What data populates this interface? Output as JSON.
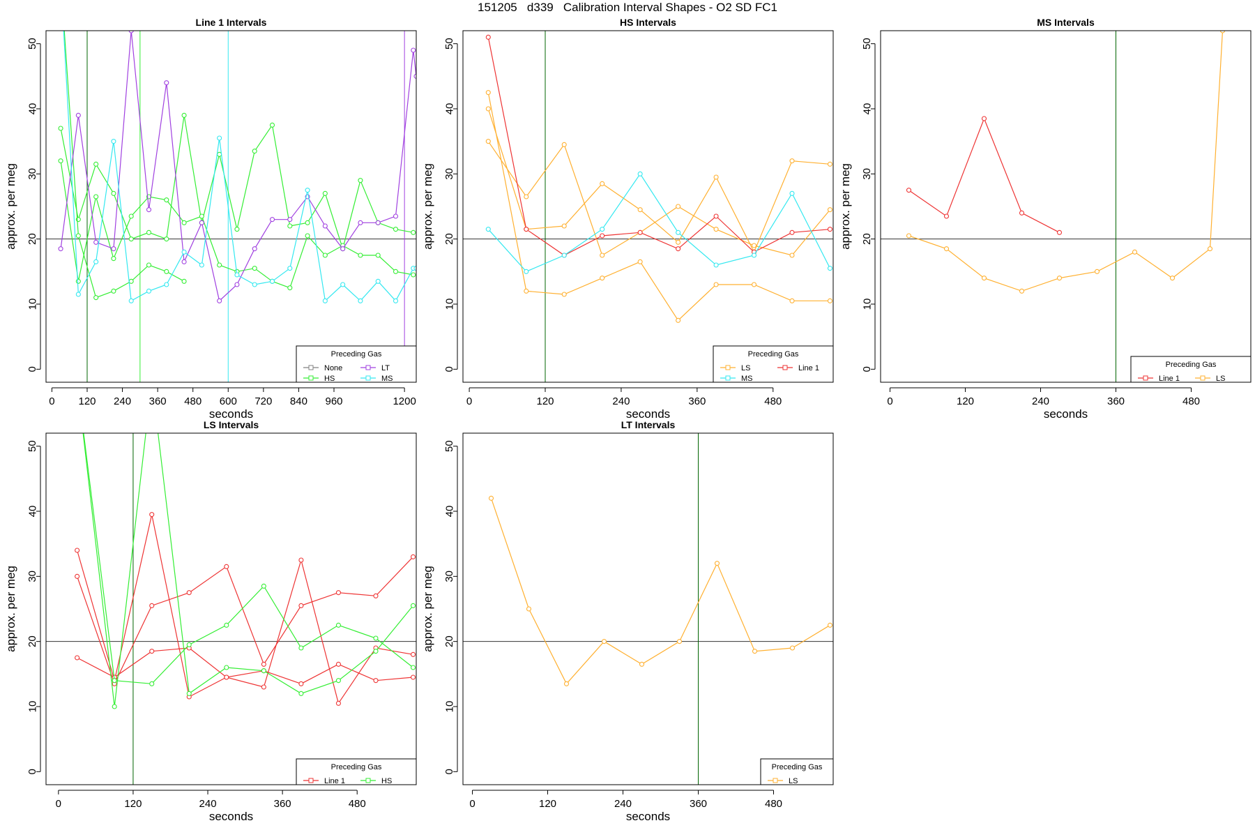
{
  "page_title": "151205   d339   Calibration Interval Shapes - O2 SD FC1",
  "colors": {
    "None": "#808080",
    "HS": "#33ee33",
    "LT": "#a040e0",
    "MS": "#33e8f0",
    "LS": "#ffb030",
    "Line 1": "#ee3333",
    "vline": "#006400",
    "refline": "#333333"
  },
  "chart_data": [
    {
      "type": "line",
      "title": "Line 1 Intervals",
      "xlabel": "seconds",
      "ylabel": "approx. per meg",
      "xlim": [
        -20,
        1240
      ],
      "ylim": [
        -2,
        52
      ],
      "x_ticks": [
        0,
        120,
        240,
        360,
        480,
        600,
        720,
        840,
        960,
        1200
      ],
      "y_ticks": [
        0,
        10,
        20,
        30,
        40,
        50
      ],
      "hline": 20,
      "vlines": [
        {
          "x": 120,
          "color": "#006400"
        },
        {
          "x": 300,
          "color": "#33ee33"
        },
        {
          "x": 600,
          "color": "#33e8f0"
        },
        {
          "x": 1200,
          "color": "#a040e0"
        }
      ],
      "legend": {
        "title": "Preceding Gas",
        "position": "bottom-right",
        "columns": 2,
        "entries": [
          "None",
          "LT",
          "HS",
          "MS"
        ]
      },
      "series": [
        {
          "name": "HS",
          "x": [
            30,
            90,
            150,
            210,
            270,
            330,
            390,
            450,
            510,
            570,
            630,
            690,
            750,
            810,
            870,
            930,
            990,
            1050,
            1110,
            1170,
            1230
          ],
          "y": [
            37,
            23,
            31.5,
            27,
            20,
            21,
            20,
            39,
            22.5,
            33,
            21.5,
            33.5,
            37.5,
            22,
            22.5,
            27,
            18.5,
            29,
            22.5,
            21.5,
            21
          ]
        },
        {
          "name": "HS",
          "x": [
            30,
            90,
            150,
            210,
            270,
            330,
            390,
            450,
            510,
            570,
            630,
            690,
            750,
            810,
            870,
            930,
            990,
            1050,
            1110,
            1170,
            1230
          ],
          "y": [
            32,
            13.5,
            26.5,
            17,
            23.5,
            26.5,
            26,
            22.5,
            23.5,
            16,
            15,
            15.5,
            13.5,
            12.5,
            20.5,
            17.5,
            19,
            17.5,
            17.5,
            15,
            14.5
          ]
        },
        {
          "name": "HS",
          "x": [
            30,
            90,
            150,
            210,
            270,
            330,
            390,
            450
          ],
          "y": [
            60,
            20.5,
            11,
            12,
            13.5,
            16,
            15,
            13.5
          ]
        },
        {
          "name": "LT",
          "x": [
            30,
            90,
            150,
            210,
            270,
            330,
            390,
            450,
            510,
            570,
            630,
            690,
            750,
            810,
            870,
            930,
            990,
            1050,
            1110,
            1170,
            1230,
            1240
          ],
          "y": [
            18.5,
            39,
            19.5,
            18.5,
            52,
            24.5,
            44,
            16.5,
            22.5,
            10.5,
            13,
            18.5,
            23,
            23,
            26.5,
            22,
            18.5,
            22.5,
            22.5,
            23.5,
            49,
            45
          ]
        },
        {
          "name": "MS",
          "x": [
            30,
            90,
            150,
            210,
            270,
            330,
            390,
            450,
            510,
            570,
            630,
            690,
            750,
            810,
            870,
            930,
            990,
            1050,
            1110,
            1170,
            1230,
            1240
          ],
          "y": [
            60,
            11.5,
            16.5,
            35,
            10.5,
            12,
            13,
            18,
            16,
            35.5,
            14.5,
            13,
            13.5,
            15.5,
            27.5,
            10.5,
            13,
            10.5,
            13.5,
            10.5,
            15.5,
            15.5
          ]
        }
      ]
    },
    {
      "type": "line",
      "title": "HS Intervals",
      "xlabel": "seconds",
      "ylabel": "approx. per meg",
      "xlim": [
        -10,
        575
      ],
      "ylim": [
        -2,
        52
      ],
      "x_ticks": [
        0,
        120,
        240,
        360,
        480
      ],
      "y_ticks": [
        0,
        10,
        20,
        30,
        40,
        50
      ],
      "hline": 20,
      "vlines": [
        {
          "x": 120,
          "color": "#006400"
        }
      ],
      "legend": {
        "title": "Preceding Gas",
        "position": "bottom-right",
        "columns": 2,
        "entries": [
          "LS",
          "Line 1",
          "MS"
        ]
      },
      "series": [
        {
          "name": "LS",
          "x": [
            30,
            90,
            150,
            210,
            270,
            330,
            390,
            450,
            510,
            570
          ],
          "y": [
            42.5,
            12,
            11.5,
            14,
            16.5,
            7.5,
            13,
            13,
            10.5,
            10.5
          ]
        },
        {
          "name": "LS",
          "x": [
            30,
            90,
            150,
            210,
            270,
            330,
            390,
            450,
            510,
            570
          ],
          "y": [
            40,
            21.5,
            22,
            28.5,
            24.5,
            19.5,
            29.5,
            18,
            32,
            31.5
          ]
        },
        {
          "name": "LS",
          "x": [
            30,
            90,
            150,
            210,
            270,
            330,
            390,
            450,
            510,
            570
          ],
          "y": [
            35,
            26.5,
            34.5,
            17.5,
            21,
            25,
            21.5,
            19,
            17.5,
            24.5
          ]
        },
        {
          "name": "Line 1",
          "x": [
            30,
            90,
            150,
            210,
            270,
            330,
            390,
            450,
            510,
            570
          ],
          "y": [
            51,
            21.5,
            17.5,
            20.5,
            21,
            18.5,
            23.5,
            18,
            21,
            21.5
          ]
        },
        {
          "name": "MS",
          "x": [
            30,
            90,
            150,
            210,
            270,
            330,
            390,
            450,
            510,
            570
          ],
          "y": [
            21.5,
            15,
            17.5,
            21.5,
            30,
            21,
            16,
            17.5,
            27,
            15.5
          ]
        }
      ]
    },
    {
      "type": "line",
      "title": "MS Intervals",
      "xlabel": "seconds",
      "ylabel": "approx. per meg",
      "xlim": [
        -15,
        575
      ],
      "ylim": [
        -2,
        52
      ],
      "x_ticks": [
        0,
        120,
        240,
        360,
        480
      ],
      "y_ticks": [
        0,
        10,
        20,
        30,
        40,
        50
      ],
      "hline": 20,
      "vlines": [
        {
          "x": 360,
          "color": "#006400"
        }
      ],
      "legend": {
        "title": "Preceding Gas",
        "position": "bottom-right",
        "columns": 2,
        "entries": [
          "Line 1",
          "LS"
        ]
      },
      "series": [
        {
          "name": "Line 1",
          "x": [
            30,
            90,
            150,
            210,
            270
          ],
          "y": [
            27.5,
            23.5,
            38.5,
            24,
            21
          ]
        },
        {
          "name": "LS",
          "x": [
            30,
            90,
            150,
            210,
            270,
            330,
            390,
            450,
            510,
            530
          ],
          "y": [
            20.5,
            18.5,
            14,
            12,
            14,
            15,
            18,
            14,
            18.5,
            52
          ]
        }
      ]
    },
    {
      "type": "line",
      "title": "LS Intervals",
      "xlabel": "seconds",
      "ylabel": "approx. per meg",
      "xlim": [
        -20,
        575
      ],
      "ylim": [
        -2,
        52
      ],
      "x_ticks": [
        0,
        120,
        240,
        360,
        480
      ],
      "y_ticks": [
        0,
        10,
        20,
        30,
        40,
        50
      ],
      "hline": 20,
      "vlines": [
        {
          "x": 120,
          "color": "#006400"
        }
      ],
      "legend": {
        "title": "Preceding Gas",
        "position": "bottom-right",
        "columns": 2,
        "entries": [
          "Line 1",
          "HS"
        ]
      },
      "series": [
        {
          "name": "Line 1",
          "x": [
            30,
            90,
            150,
            210,
            270,
            330,
            390,
            450,
            510,
            570
          ],
          "y": [
            34,
            14,
            39.5,
            11.5,
            14.5,
            13,
            32.5,
            10.5,
            19,
            18
          ]
        },
        {
          "name": "Line 1",
          "x": [
            30,
            90,
            150,
            210,
            270,
            330,
            390,
            450,
            510,
            570
          ],
          "y": [
            30,
            13.5,
            25.5,
            27.5,
            31.5,
            16.5,
            25.5,
            27.5,
            27,
            33
          ]
        },
        {
          "name": "Line 1",
          "x": [
            30,
            90,
            150,
            210,
            270,
            330,
            390,
            450,
            510,
            570
          ],
          "y": [
            17.5,
            14.5,
            18.5,
            19,
            14.5,
            15.5,
            13.5,
            16.5,
            14,
            14.5
          ]
        },
        {
          "name": "HS",
          "x": [
            30,
            90,
            150,
            210,
            270,
            330,
            390,
            450,
            510,
            570
          ],
          "y": [
            60,
            10,
            60,
            12,
            16,
            15.5,
            12,
            14,
            18.5,
            25.5
          ]
        },
        {
          "name": "HS",
          "x": [
            30,
            90,
            150,
            210,
            270,
            330,
            390,
            450,
            510,
            570
          ],
          "y": [
            60,
            14,
            13.5,
            19.5,
            22.5,
            28.5,
            19,
            22.5,
            20.5,
            16
          ]
        }
      ]
    },
    {
      "type": "line",
      "title": "LT Intervals",
      "xlabel": "seconds",
      "ylabel": "approx. per meg",
      "xlim": [
        -15,
        575
      ],
      "ylim": [
        -2,
        52
      ],
      "x_ticks": [
        0,
        120,
        240,
        360,
        480
      ],
      "y_ticks": [
        0,
        10,
        20,
        30,
        40,
        50
      ],
      "hline": 20,
      "vlines": [
        {
          "x": 360,
          "color": "#006400"
        }
      ],
      "legend": {
        "title": "Preceding Gas",
        "position": "bottom-right",
        "columns": 1,
        "entries": [
          "LS"
        ]
      },
      "series": [
        {
          "name": "LS",
          "x": [
            30,
            90,
            150,
            210,
            270,
            330,
            390,
            450,
            510,
            570
          ],
          "y": [
            42,
            25,
            13.5,
            20,
            16.5,
            20,
            32,
            18.5,
            19,
            22.5
          ]
        }
      ]
    }
  ]
}
